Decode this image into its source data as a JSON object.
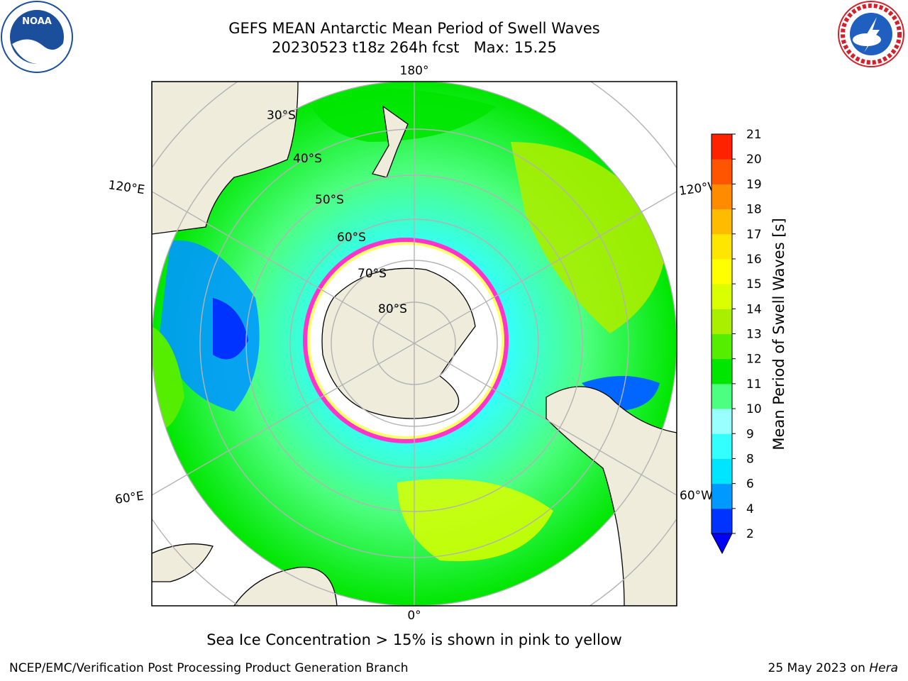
{
  "header": {
    "title_line1": "GEFS MEAN Antarctic Mean Period of Swell Waves",
    "title_line2": "20230523 t18z 264h fcst   Max: 15.25"
  },
  "logos": {
    "left": {
      "name": "NOAA",
      "ring_text": "NATIONAL OCEANIC AND ATMOSPHERIC ADMINISTRATION · U.S. DEPARTMENT OF COMMERCE",
      "colors": [
        "#1b4f9c",
        "#ffffff"
      ]
    },
    "right": {
      "name": "NATIONAL WEATHER SERVICE",
      "colors": [
        "#d4202a",
        "#1f5fbf"
      ]
    }
  },
  "map": {
    "projection": "south-polar-stereographic",
    "meridian_labels": {
      "top": "180°",
      "bottom": "0°",
      "upper_left": "120°E",
      "upper_right": "120°W",
      "lower_left": "60°E",
      "lower_right": "60°W"
    },
    "parallel_labels": [
      "30°S",
      "40°S",
      "50°S",
      "60°S",
      "70°S",
      "80°S"
    ],
    "colors": {
      "land": "#efecdc",
      "ice_edge": "#ff33cc",
      "ice_interior": "#ffffff",
      "grid": "#b3b3b3"
    }
  },
  "colorbar": {
    "label": "Mean Period of Swell Waves [s]",
    "ticks": [
      "2",
      "4",
      "6",
      "8",
      "9",
      "10",
      "11",
      "12",
      "13",
      "14",
      "15",
      "16",
      "17",
      "18",
      "19",
      "20",
      "21"
    ],
    "colors": [
      "#0033ff",
      "#0099ff",
      "#00e5ff",
      "#33ffff",
      "#99ffff",
      "#4dff80",
      "#00e600",
      "#55ee00",
      "#aaee00",
      "#d9ff00",
      "#ffff00",
      "#ffe600",
      "#ffbb00",
      "#ff8c00",
      "#ff5500",
      "#ff2200"
    ],
    "extend_below_color": "#0000ff"
  },
  "note": "Sea Ice Concentration > 15% is shown in pink to yellow",
  "footer": {
    "left": "NCEP/EMC/Verification Post Processing Product Generation Branch",
    "right_prefix": "25 May 2023 on ",
    "right_host": "Hera"
  }
}
